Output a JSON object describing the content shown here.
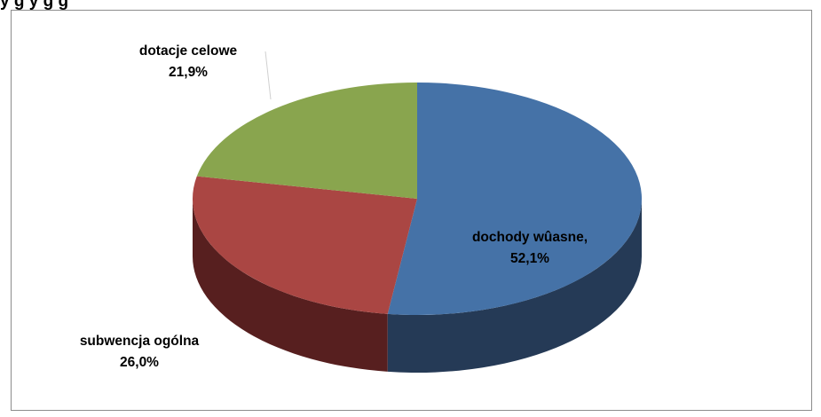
{
  "title": "y            g    y                       g g",
  "chart_data": {
    "type": "pie",
    "three_d": true,
    "title": "",
    "slices": [
      {
        "name": "dochody wûasne,",
        "value_label": "52,1%",
        "value": 52.1,
        "color": "#4572a7",
        "side_color": "#253a56"
      },
      {
        "name": "subwencja ogólna",
        "value_label": "26,0%",
        "value": 26.0,
        "color": "#aa4643",
        "side_color": "#571f1f"
      },
      {
        "name": "dotacje celowe",
        "value_label": "21,9%",
        "value": 21.9,
        "color": "#89a54e",
        "side_color": "#4a5a28"
      }
    ]
  }
}
